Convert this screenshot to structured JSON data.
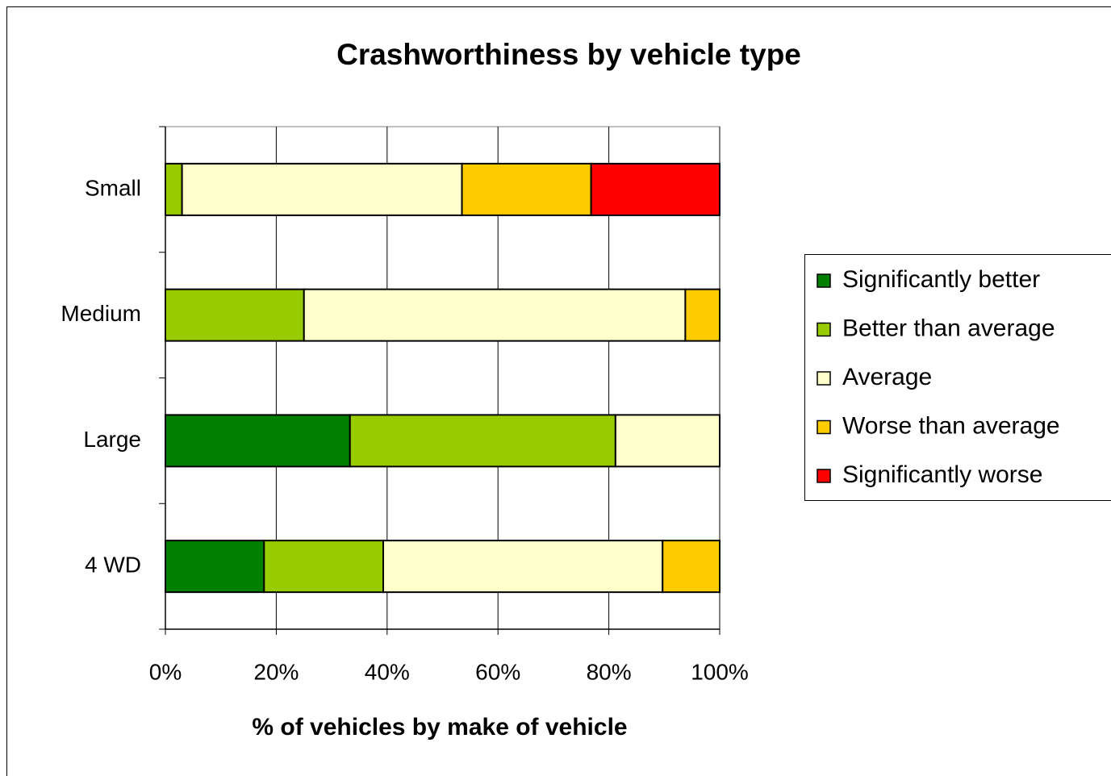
{
  "chart_data": {
    "type": "stacked-bar-horizontal",
    "title": "Crashworthiness by vehicle type",
    "x_label": "% of vehicles by make of vehicle",
    "categories": [
      "Small",
      "Medium",
      "Large",
      "4 WD"
    ],
    "series": [
      {
        "name": "Significantly better",
        "color": "#008000",
        "values": [
          0,
          0,
          33.3,
          17.8
        ]
      },
      {
        "name": "Better than average",
        "color": "#99cc00",
        "values": [
          3,
          25,
          47.9,
          21.5
        ]
      },
      {
        "name": "Average",
        "color": "#ffffcc",
        "values": [
          50.5,
          68.8,
          18.8,
          50.4
        ]
      },
      {
        "name": "Worse than average",
        "color": "#ffcc00",
        "values": [
          23.3,
          6.2,
          0,
          10.3
        ]
      },
      {
        "name": "Significantly worse",
        "color": "#ff0000",
        "values": [
          23.2,
          0,
          0,
          0
        ]
      }
    ],
    "xlim": [
      0,
      100
    ],
    "xticks": [
      {
        "value": 0,
        "label": "0%"
      },
      {
        "value": 20,
        "label": "20%"
      },
      {
        "value": 40,
        "label": "40%"
      },
      {
        "value": 60,
        "label": "60%"
      },
      {
        "value": 80,
        "label": "80%"
      },
      {
        "value": 100,
        "label": "100%"
      }
    ],
    "grid": true,
    "legend": "right"
  }
}
